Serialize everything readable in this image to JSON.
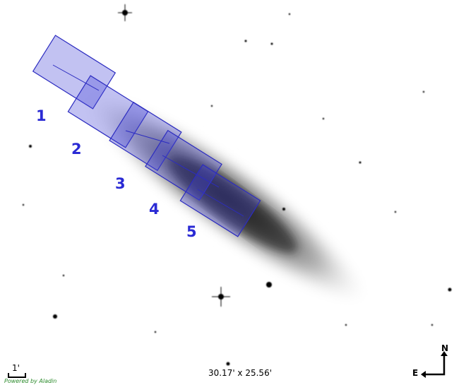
{
  "field_labels": [
    "1",
    "2",
    "3",
    "4",
    "5"
  ],
  "scale_bar": "1'",
  "field_of_view": "30.17' x 25.56'",
  "compass": {
    "north": "N",
    "east": "E"
  },
  "credit": "Powered by Aladin"
}
